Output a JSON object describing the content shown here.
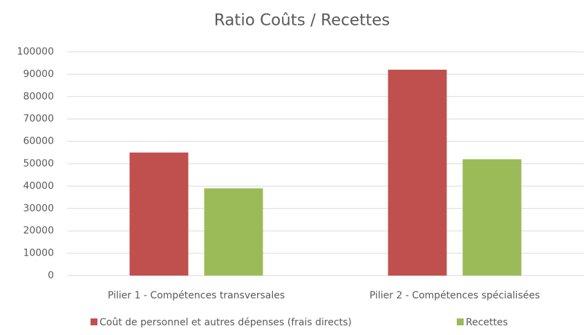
{
  "chart_data": {
    "type": "bar",
    "title": "Ratio Coûts / Recettes",
    "categories": [
      "Pilier 1 - Compétences transversales",
      "Pilier 2 - Compétences spécialisées"
    ],
    "series": [
      {
        "name": "Coût de personnel et autres dépenses (frais directs)",
        "color": "#c0504d",
        "values": [
          55000,
          92000
        ]
      },
      {
        "name": "Recettes",
        "color": "#9bbb59",
        "values": [
          39000,
          52000
        ]
      }
    ],
    "ylim": [
      0,
      100000
    ],
    "yticks": [
      0,
      10000,
      20000,
      30000,
      40000,
      50000,
      60000,
      70000,
      80000,
      90000,
      100000
    ],
    "grid": true,
    "legend": "bottom"
  }
}
